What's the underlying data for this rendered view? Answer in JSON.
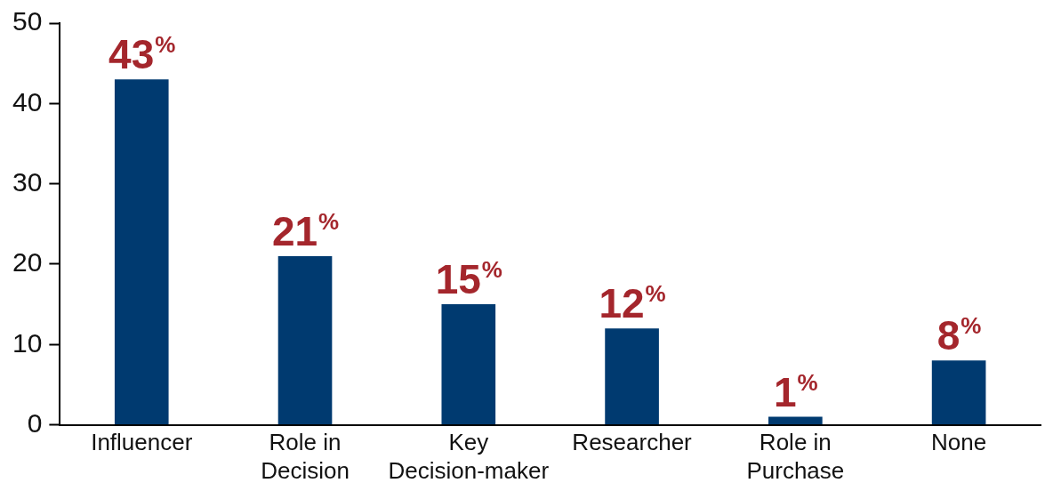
{
  "chart_data": {
    "type": "bar",
    "categories": [
      "Influencer",
      "Role in Decision",
      "Key Decision-maker",
      "Researcher",
      "Role in Purchase",
      "None"
    ],
    "values": [
      43,
      21,
      15,
      12,
      1,
      8
    ],
    "value_labels": [
      "43%",
      "21%",
      "15%",
      "12%",
      "1%",
      "8%"
    ],
    "color": "#003a70",
    "ylim": [
      0,
      50
    ],
    "yticks": [
      0,
      10,
      20,
      30,
      40,
      50
    ],
    "grid": false,
    "legend": false
  }
}
